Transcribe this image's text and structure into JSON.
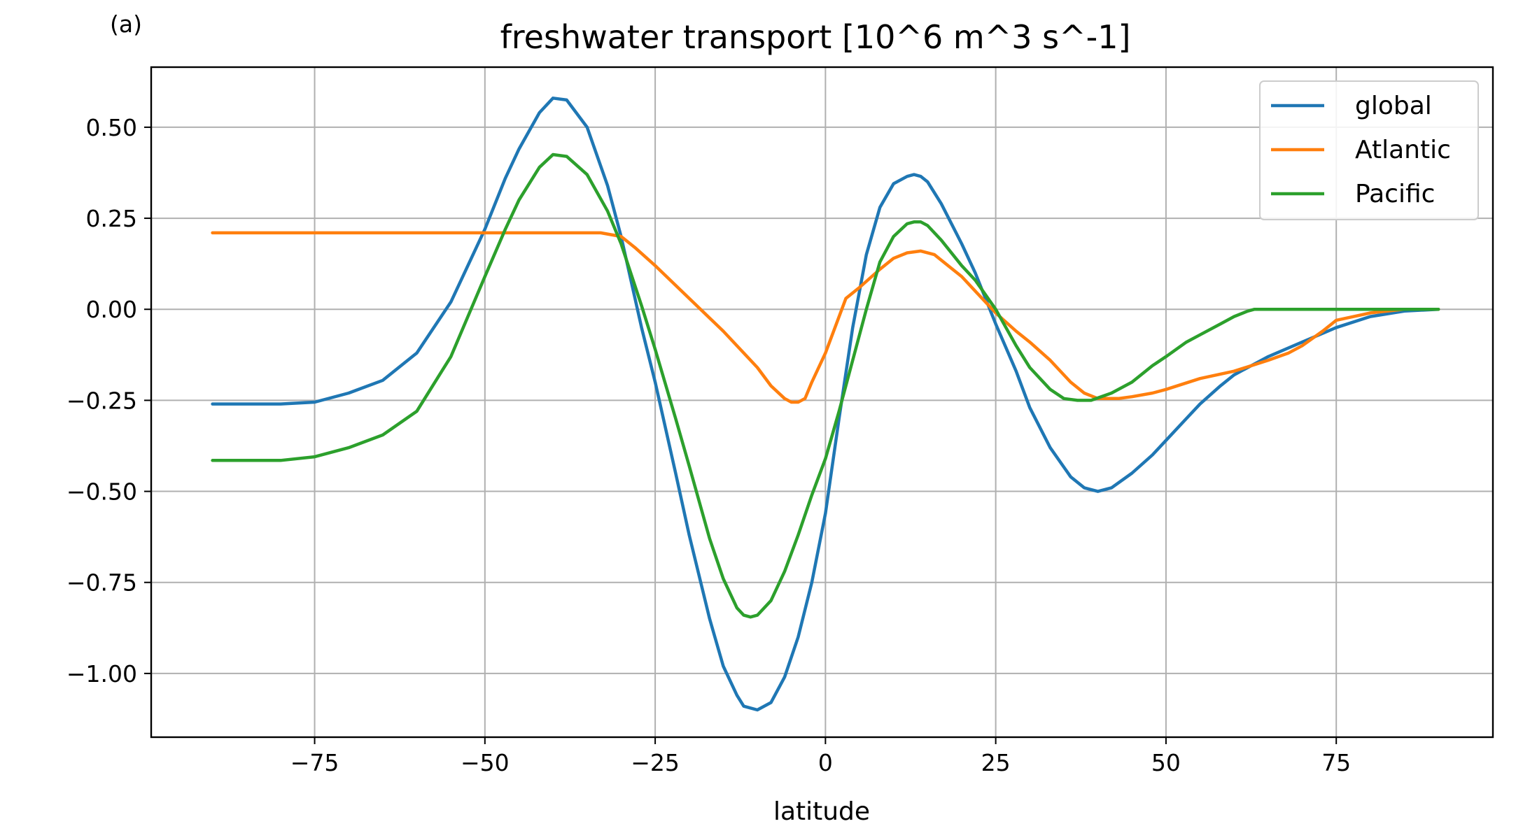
{
  "chart_data": {
    "type": "line",
    "panel_label": "(a)",
    "title": "freshwater transport [10^6 m^3 s^-1]",
    "xlabel": "latitude",
    "ylabel": "",
    "xlim": [
      -99,
      98
    ],
    "ylim": [
      -1.175,
      0.665
    ],
    "xticks": [
      -75,
      -50,
      -25,
      0,
      25,
      50,
      75
    ],
    "xtick_labels": [
      "−75",
      "−50",
      "−25",
      "0",
      "25",
      "50",
      "75"
    ],
    "yticks": [
      0.5,
      0.25,
      0.0,
      -0.25,
      -0.5,
      -0.75,
      -1.0
    ],
    "ytick_labels": [
      "0.50",
      "0.25",
      "0.00",
      "−0.25",
      "−0.50",
      "−0.75",
      "−1.00"
    ],
    "grid": true,
    "legend_position": "top-right",
    "series": [
      {
        "name": "global",
        "color": "#1f77b4",
        "x": [
          -90,
          -80,
          -75,
          -70,
          -65,
          -60,
          -55,
          -50,
          -47,
          -45,
          -42,
          -40,
          -38,
          -35,
          -32,
          -30,
          -27,
          -25,
          -22,
          -20,
          -17,
          -15,
          -13,
          -12,
          -10,
          -8,
          -6,
          -4,
          -2,
          0,
          2,
          4,
          6,
          8,
          10,
          12,
          13,
          14,
          15,
          17,
          20,
          22,
          25,
          28,
          30,
          33,
          36,
          38,
          40,
          42,
          45,
          48,
          50,
          53,
          55,
          58,
          60,
          63,
          65,
          70,
          75,
          80,
          85,
          90
        ],
        "y": [
          -0.26,
          -0.26,
          -0.255,
          -0.23,
          -0.195,
          -0.12,
          0.02,
          0.22,
          0.36,
          0.44,
          0.54,
          0.58,
          0.575,
          0.5,
          0.34,
          0.2,
          -0.05,
          -0.2,
          -0.45,
          -0.62,
          -0.85,
          -0.98,
          -1.06,
          -1.09,
          -1.1,
          -1.08,
          -1.01,
          -0.9,
          -0.75,
          -0.56,
          -0.3,
          -0.05,
          0.15,
          0.28,
          0.345,
          0.365,
          0.37,
          0.365,
          0.35,
          0.29,
          0.18,
          0.1,
          -0.04,
          -0.17,
          -0.27,
          -0.38,
          -0.46,
          -0.49,
          -0.5,
          -0.49,
          -0.45,
          -0.4,
          -0.36,
          -0.3,
          -0.26,
          -0.21,
          -0.18,
          -0.15,
          -0.13,
          -0.09,
          -0.05,
          -0.02,
          -0.005,
          0.0
        ]
      },
      {
        "name": "Atlantic",
        "color": "#ff7f0e",
        "x": [
          -90,
          -80,
          -70,
          -60,
          -50,
          -40,
          -33,
          -30,
          -28,
          -25,
          -20,
          -15,
          -10,
          -8,
          -6,
          -5,
          -4,
          -3,
          -2,
          0,
          3,
          5,
          8,
          10,
          12,
          14,
          16,
          18,
          20,
          22,
          25,
          28,
          30,
          33,
          36,
          38,
          40,
          43,
          45,
          48,
          50,
          55,
          60,
          65,
          68,
          70,
          73,
          75,
          80,
          85,
          90
        ],
        "y": [
          0.21,
          0.21,
          0.21,
          0.21,
          0.21,
          0.21,
          0.21,
          0.2,
          0.17,
          0.12,
          0.03,
          -0.06,
          -0.16,
          -0.21,
          -0.245,
          -0.255,
          -0.255,
          -0.245,
          -0.2,
          -0.12,
          0.03,
          0.06,
          0.11,
          0.14,
          0.155,
          0.16,
          0.15,
          0.12,
          0.09,
          0.05,
          -0.01,
          -0.06,
          -0.09,
          -0.14,
          -0.2,
          -0.23,
          -0.245,
          -0.245,
          -0.24,
          -0.23,
          -0.22,
          -0.19,
          -0.17,
          -0.14,
          -0.12,
          -0.1,
          -0.06,
          -0.03,
          -0.01,
          0.0,
          0.0
        ]
      },
      {
        "name": "Pacific",
        "color": "#2ca02c",
        "x": [
          -90,
          -80,
          -75,
          -70,
          -65,
          -60,
          -55,
          -50,
          -47,
          -45,
          -42,
          -40,
          -38,
          -35,
          -32,
          -30,
          -27,
          -25,
          -22,
          -20,
          -17,
          -15,
          -13,
          -12,
          -11,
          -10,
          -8,
          -6,
          -4,
          -2,
          0,
          2,
          4,
          6,
          8,
          10,
          12,
          13,
          14,
          15,
          17,
          20,
          22,
          25,
          28,
          30,
          33,
          35,
          37,
          39,
          42,
          45,
          48,
          50,
          53,
          55,
          58,
          60,
          62,
          63,
          65,
          70,
          75,
          80,
          85,
          90
        ],
        "y": [
          -0.415,
          -0.415,
          -0.405,
          -0.38,
          -0.345,
          -0.28,
          -0.13,
          0.09,
          0.22,
          0.3,
          0.39,
          0.425,
          0.42,
          0.37,
          0.27,
          0.18,
          0.01,
          -0.11,
          -0.3,
          -0.43,
          -0.63,
          -0.74,
          -0.82,
          -0.84,
          -0.845,
          -0.84,
          -0.8,
          -0.72,
          -0.62,
          -0.51,
          -0.41,
          -0.28,
          -0.14,
          0.0,
          0.13,
          0.2,
          0.235,
          0.24,
          0.24,
          0.23,
          0.19,
          0.12,
          0.08,
          0.0,
          -0.1,
          -0.16,
          -0.22,
          -0.245,
          -0.25,
          -0.25,
          -0.23,
          -0.2,
          -0.155,
          -0.13,
          -0.09,
          -0.07,
          -0.04,
          -0.02,
          -0.005,
          0.0,
          0.0,
          0.0,
          0.0,
          0.0,
          0.0,
          0.0
        ]
      }
    ]
  }
}
